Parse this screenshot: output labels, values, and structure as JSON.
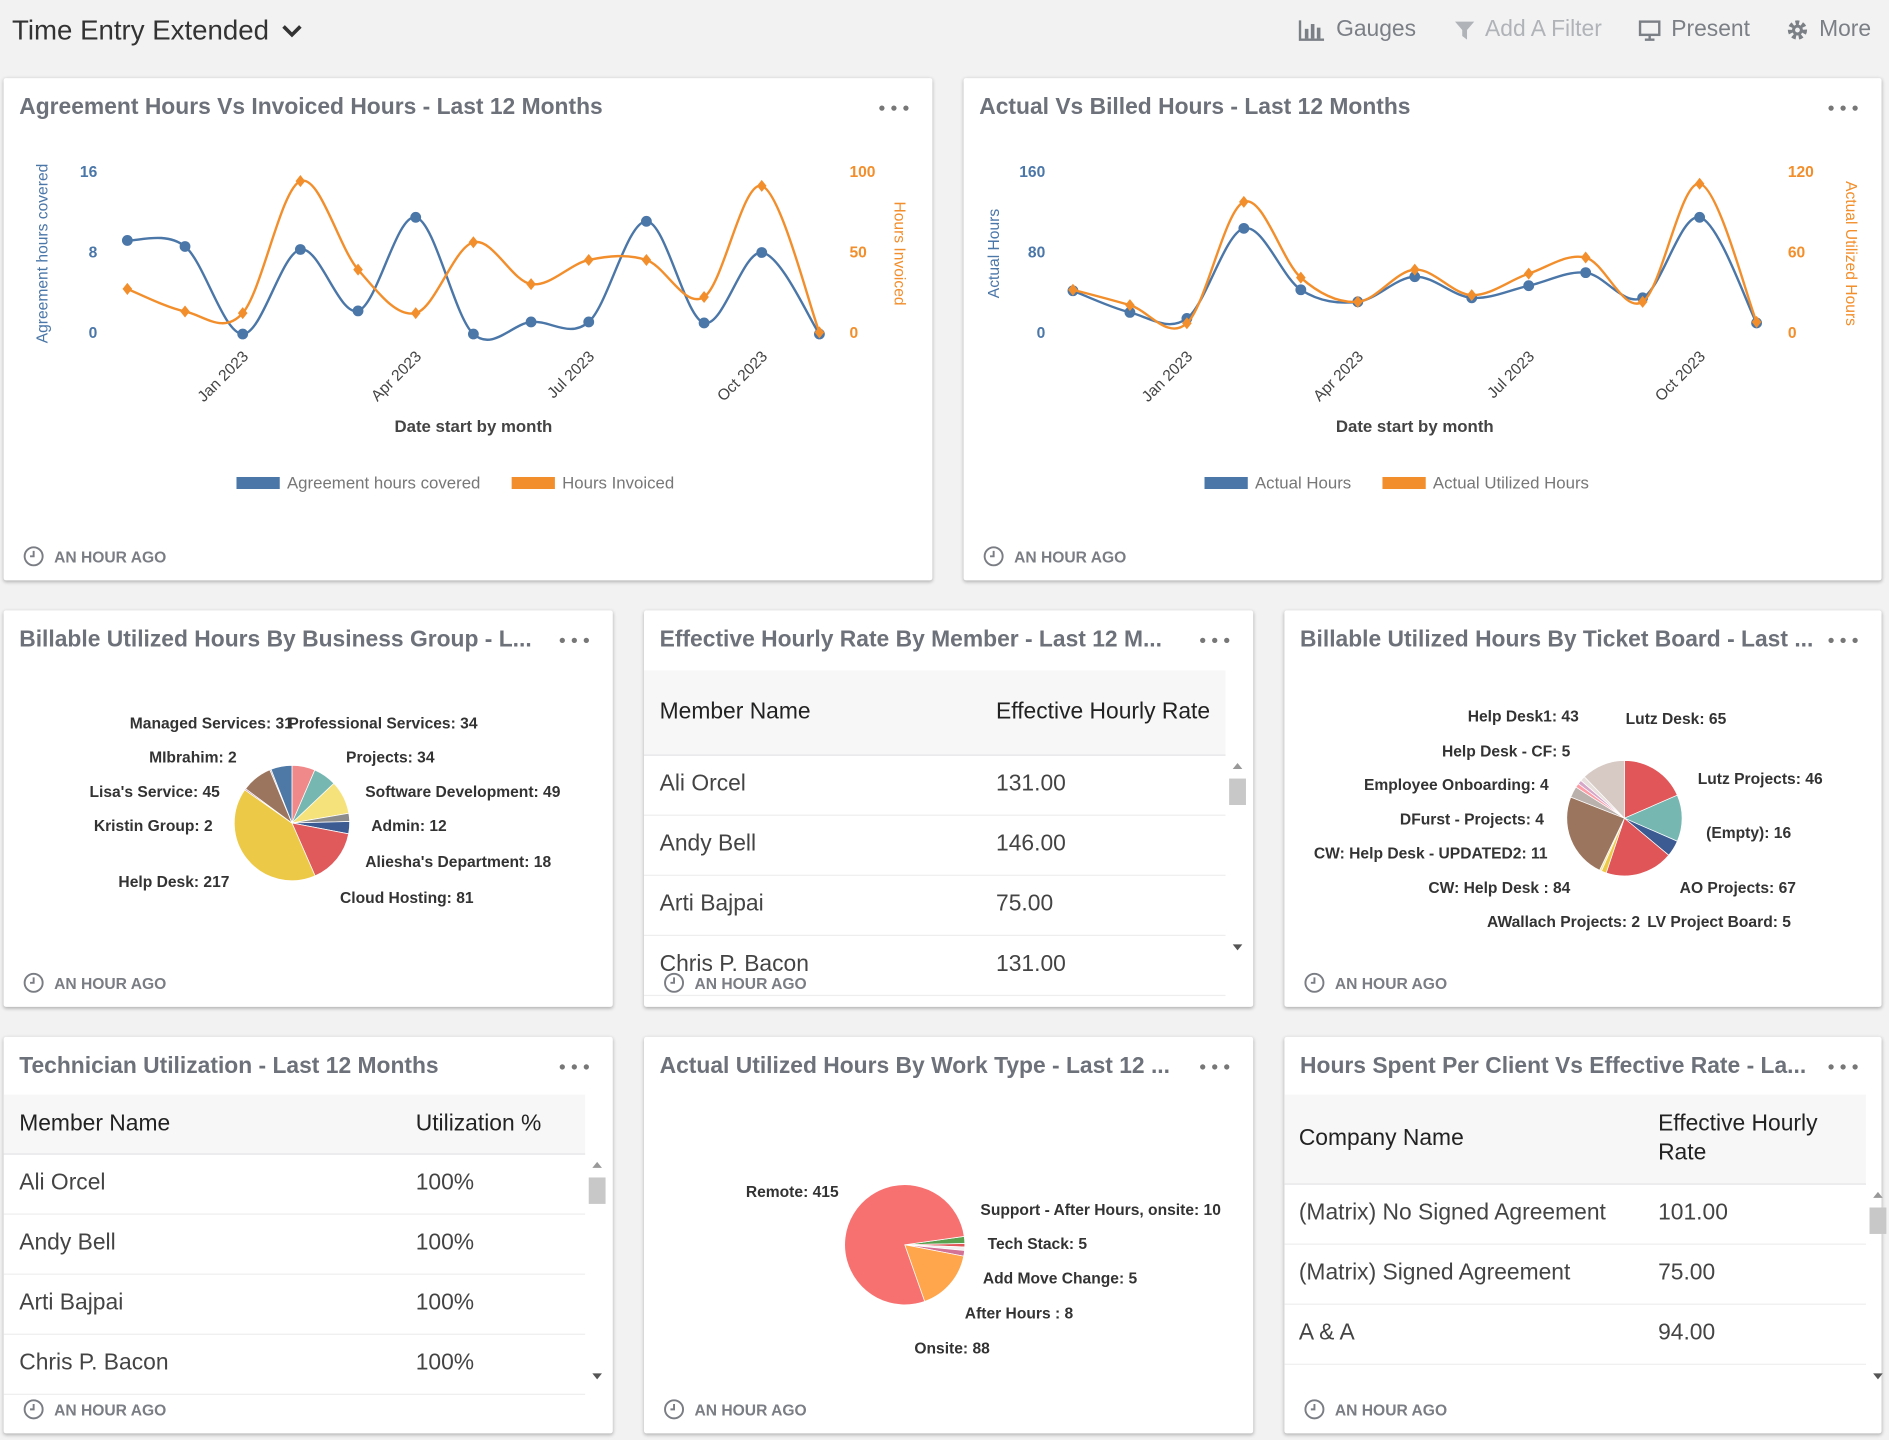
{
  "header": {
    "title": "Time Entry Extended",
    "actions": [
      "Gauges",
      "Add A Filter",
      "Present",
      "More"
    ]
  },
  "widgets": [
    {
      "title": "Agreement Hours Vs Invoiced Hours - Last 12 Months",
      "updated": "AN HOUR AGO",
      "chart_data": {
        "type": "line",
        "categories": [
          null,
          null,
          "Jan 2023",
          null,
          null,
          "Apr 2023",
          null,
          null,
          "Jul 2023",
          null,
          null,
          "Oct 2023",
          null
        ],
        "xlabel": "Date start by month",
        "ylabel": "Agreement hours covered",
        "y2label": "Hours Invoiced",
        "ylim": [
          0,
          16
        ],
        "yticks": [
          0,
          8,
          16
        ],
        "y2lim": [
          0,
          100
        ],
        "y2ticks": [
          0,
          50,
          100
        ],
        "series": [
          {
            "name": "Agreement hours covered",
            "color": "#4a76a8",
            "values": [
              9.3,
              8.7,
              0,
              8.4,
              2.3,
              11.6,
              0,
              1.2,
              1.2,
              11.2,
              1.1,
              8.1,
              0
            ]
          },
          {
            "name": "Hours Invoiced",
            "color": "#f28e2b",
            "axis": "y2",
            "values": [
              28,
              14,
              13,
              95,
              40,
              13,
              57,
              31,
              46,
              46,
              23,
              92,
              1
            ]
          }
        ]
      }
    },
    {
      "title": "Actual Vs Billed Hours - Last 12 Months",
      "updated": "AN HOUR AGO",
      "chart_data": {
        "type": "line",
        "categories": [
          null,
          null,
          "Jan 2023",
          null,
          null,
          "Apr 2023",
          null,
          null,
          "Jul 2023",
          null,
          null,
          "Oct 2023",
          null
        ],
        "xlabel": "Date start by month",
        "ylabel": "Actual Hours",
        "y2label": "Actual Utilized Hours",
        "ylim": [
          0,
          160
        ],
        "yticks": [
          0,
          80,
          160
        ],
        "y2lim": [
          0,
          120
        ],
        "y2ticks": [
          0,
          60,
          120
        ],
        "series": [
          {
            "name": "Actual Hours",
            "color": "#4a76a8",
            "values": [
              43,
              21.5,
              15.5,
              105,
              44,
              32,
              57,
              36,
              48,
              61,
              36,
              116,
              11
            ]
          },
          {
            "name": "Actual Utilized Hours",
            "color": "#f28e2b",
            "axis": "y2",
            "values": [
              33,
              21.5,
              8,
              98.5,
              42,
              24,
              48,
              29,
              45,
              57,
              24,
              112,
              9
            ]
          }
        ]
      }
    },
    {
      "title": "Billable Utilized Hours By Business Group - L...",
      "updated": "AN HOUR AGO",
      "chart_data": {
        "type": "pie",
        "values": [
          34,
          34,
          49,
          12,
          18,
          81,
          217,
          2,
          45,
          2,
          31
        ],
        "value_labels": [
          "Professional Services: 34",
          "Projects: 34",
          "Software Development: 49",
          "Admin: 12",
          "Aliesha's Department: 18",
          "Cloud Hosting: 81",
          "Help Desk: 217",
          "Kristin Group: 2",
          "Lisa's Service: 45",
          "MIbrahim: 2",
          "Managed Services: 31"
        ],
        "colors": [
          "#f0898a",
          "#76b7b2",
          "#f6e27a",
          "#8c8c8c",
          "#3b5b92",
          "#e05a5c",
          "#edc948",
          "#b07aa1",
          "#9c755f",
          "#bab0ac",
          "#4e79a7"
        ]
      }
    },
    {
      "title": "Effective Hourly Rate By Member - Last 12 M...",
      "updated": "AN HOUR AGO",
      "table": {
        "columns": [
          "Member Name",
          "Effective Hourly Rate"
        ],
        "rows": [
          [
            "Ali Orcel",
            "131.00"
          ],
          [
            "Andy Bell",
            "146.00"
          ],
          [
            "Arti Bajpai",
            "75.00"
          ],
          [
            "Chris P. Bacon",
            "131.00"
          ]
        ]
      }
    },
    {
      "title": "Billable Utilized Hours By Ticket Board - Last ...",
      "updated": "AN HOUR AGO",
      "chart_data": {
        "type": "pie",
        "values": [
          65,
          46,
          16,
          67,
          5,
          2,
          84,
          11,
          4,
          4,
          5,
          43
        ],
        "value_labels": [
          "Lutz Desk: 65",
          "Lutz Projects: 46",
          "(Empty): 16",
          "AO Projects: 67",
          "LV Project Board: 5",
          "AWallach Projects: 2",
          "CW: Help Desk : 84",
          "CW: Help Desk - UPDATED2: 11",
          "DFurst - Projects: 4",
          "Employee Onboarding: 4",
          "Help Desk - CF: 5",
          "Help Desk1: 43"
        ],
        "colors": [
          "#e15759",
          "#76b7b2",
          "#3b5b92",
          "#e05557",
          "#edc948",
          "#f1e3a0",
          "#9c755f",
          "#bab0ac",
          "#ff9da7",
          "#d4a6c8",
          "#e8e0dc",
          "#d7c9c4"
        ]
      }
    },
    {
      "title": "Technician Utilization - Last 12 Months",
      "updated": "AN HOUR AGO",
      "table": {
        "columns": [
          "Member Name",
          "Utilization %"
        ],
        "rows": [
          [
            "Ali Orcel",
            "100%"
          ],
          [
            "Andy Bell",
            "100%"
          ],
          [
            "Arti Bajpai",
            "100%"
          ],
          [
            "Chris P. Bacon",
            "100%"
          ]
        ]
      }
    },
    {
      "title": "Actual Utilized Hours By Work Type - Last 12 ...",
      "updated": "AN HOUR AGO",
      "chart_data": {
        "type": "pie",
        "values": [
          10,
          5,
          5,
          8,
          88,
          415
        ],
        "value_labels": [
          "Support - After Hours, onsite: 10",
          "Tech Stack: 5",
          "Add Move Change: 5",
          "After Hours : 8",
          "Onsite: 88",
          "Remote: 415"
        ],
        "colors": [
          "#59a14f",
          "#e15759",
          "#f2f2f2",
          "#d37295",
          "#ffa64d",
          "#f87171"
        ]
      }
    },
    {
      "title": "Hours Spent Per Client Vs Effective Rate - La...",
      "updated": "AN HOUR AGO",
      "table": {
        "columns": [
          "Company Name",
          "Effective Hourly Rate"
        ],
        "rows": [
          [
            "(Matrix) No Signed Agreement",
            "101.00"
          ],
          [
            "(Matrix) Signed Agreement",
            "75.00"
          ],
          [
            "A & A",
            "94.00"
          ]
        ]
      }
    }
  ]
}
